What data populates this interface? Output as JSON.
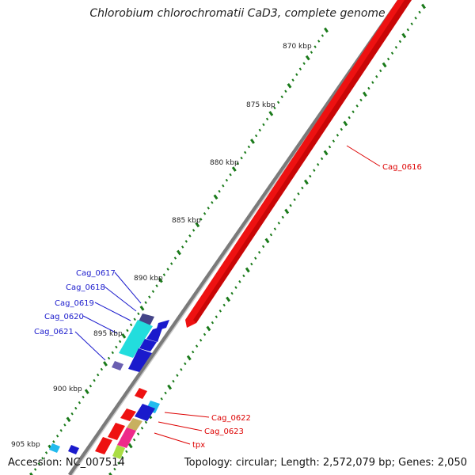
{
  "title": "Chlorobium chlorochromatii CaD3, complete genome",
  "footer": {
    "accession": "Accession: NC_007514",
    "summary": "Topology: circular; Length: 2,572,079 bp; Genes: 2,050"
  },
  "ticks": [
    {
      "label": "870 kbp"
    },
    {
      "label": "875 kbp"
    },
    {
      "label": "880 kbp"
    },
    {
      "label": "885 kbp"
    },
    {
      "label": "890 kbp"
    },
    {
      "label": "895 kbp"
    },
    {
      "label": "900 kbp"
    },
    {
      "label": "905 kbp"
    }
  ],
  "genes_red": [
    {
      "label": "Cag_0616"
    },
    {
      "label": "Cag_0622"
    },
    {
      "label": "Cag_0623"
    },
    {
      "label": "tpx"
    }
  ],
  "genes_blue": [
    {
      "label": "Cag_0617"
    },
    {
      "label": "Cag_0618"
    },
    {
      "label": "Cag_0619"
    },
    {
      "label": "Cag_0620"
    },
    {
      "label": "Cag_0621"
    }
  ],
  "colors": {
    "forward_strand": "#ee1111",
    "reverse_strand": "#1a1acc",
    "backbone": "#808080",
    "tick_marks": "#1a7a1a",
    "cyan_feature": "#22dddd",
    "purple_feature": "#6a5fb0"
  }
}
